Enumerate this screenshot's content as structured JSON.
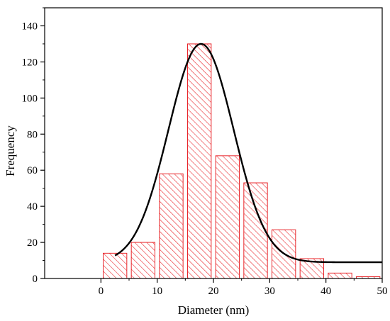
{
  "chart_data": {
    "type": "bar",
    "title": "",
    "xlabel": "Diameter (nm)",
    "ylabel": "Frequency",
    "xlim": [
      -10,
      50
    ],
    "ylim": [
      0,
      150
    ],
    "xticks": [
      0,
      10,
      20,
      30,
      40,
      50
    ],
    "yticks": [
      0,
      20,
      40,
      60,
      80,
      100,
      120,
      140
    ],
    "bin_width": 5,
    "bins": [
      {
        "center": 2.5,
        "value": 14
      },
      {
        "center": 7.5,
        "value": 20
      },
      {
        "center": 12.5,
        "value": 58
      },
      {
        "center": 17.5,
        "value": 130
      },
      {
        "center": 22.5,
        "value": 68
      },
      {
        "center": 27.5,
        "value": 53
      },
      {
        "center": 32.5,
        "value": 27
      },
      {
        "center": 37.5,
        "value": 11
      },
      {
        "center": 42.5,
        "value": 3
      },
      {
        "center": 47.5,
        "value": 1
      }
    ],
    "fit_curve": {
      "type": "gaussian",
      "baseline": 9,
      "amplitude": 121,
      "center": 17.8,
      "sigma": 5.8,
      "x_start": 2.5,
      "x_end": 50
    },
    "grid": false,
    "colors": {
      "bar_edge": "#e8262b",
      "hatch": "#e8262b",
      "curve": "#000000",
      "axis": "#000000"
    }
  }
}
